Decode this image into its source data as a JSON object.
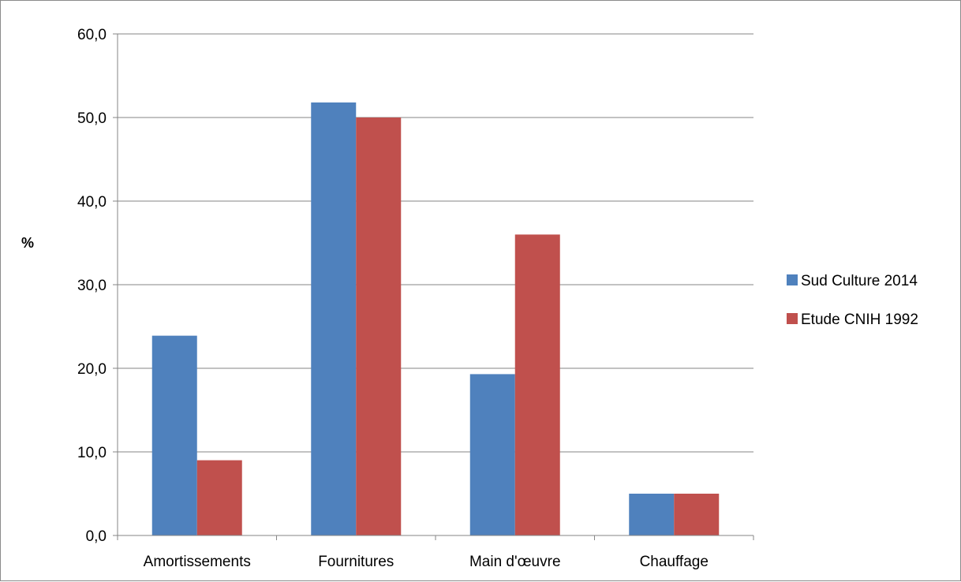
{
  "chart_data": {
    "type": "bar",
    "title": "",
    "xlabel": "",
    "ylabel": "%",
    "ylim": [
      0,
      60
    ],
    "ytick_values": [
      0,
      10,
      20,
      30,
      40,
      50,
      60
    ],
    "ytick_labels": [
      "0,0",
      "10,0",
      "20,0",
      "30,0",
      "40,0",
      "50,0",
      "60,0"
    ],
    "categories": [
      "Amortissements",
      "Fournitures",
      "Main d'œuvre",
      "Chauffage"
    ],
    "series": [
      {
        "name": "Sud Culture 2014",
        "color": "#4f81bd",
        "values": [
          23.9,
          51.8,
          19.3,
          5.0
        ]
      },
      {
        "name": "Etude CNIH 1992",
        "color": "#c0504d",
        "values": [
          9.0,
          50.0,
          36.0,
          5.0
        ]
      }
    ],
    "grid": true,
    "legend_position": "right"
  }
}
